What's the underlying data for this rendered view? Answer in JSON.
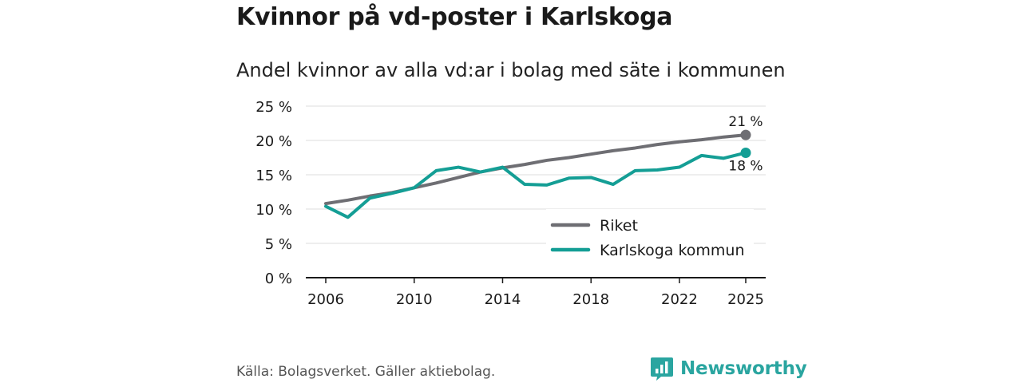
{
  "header": {
    "title": "Kvinnor på vd-poster i Karlskoga",
    "subtitle": "Andel kvinnor av alla vd:ar i bolag med säte i kommunen"
  },
  "footer": {
    "source": "Källa: Bolagsverket. Gäller aktiebolag.",
    "brand": "Newsworthy"
  },
  "colors": {
    "riket": "#6e6e73",
    "karlskoga": "#149e95",
    "grid": "#dddddd",
    "axis": "#1a1a1a",
    "brand": "#2aa5a0"
  },
  "chart_data": {
    "type": "line",
    "title": "Andel kvinnor av alla vd:ar i bolag med säte i kommunen",
    "xlabel": "",
    "ylabel": "",
    "x": [
      2006,
      2007,
      2008,
      2009,
      2010,
      2011,
      2012,
      2013,
      2014,
      2015,
      2016,
      2017,
      2018,
      2019,
      2020,
      2021,
      2022,
      2023,
      2024,
      2025
    ],
    "xlim": [
      2006,
      2025
    ],
    "ylim": [
      0,
      25
    ],
    "x_ticks": [
      2006,
      2010,
      2014,
      2018,
      2022,
      2025
    ],
    "x_tick_labels": [
      "2006",
      "2010",
      "2014",
      "2018",
      "2022",
      "2025"
    ],
    "y_ticks": [
      0,
      5,
      10,
      15,
      20,
      25
    ],
    "y_tick_labels": [
      "0 %",
      "5 %",
      "10 %",
      "15 %",
      "20 %",
      "25 %"
    ],
    "grid": true,
    "legend_position": "bottom-right",
    "series": [
      {
        "name": "Riket",
        "color": "#6e6e73",
        "values": [
          10.8,
          11.3,
          11.9,
          12.4,
          13.1,
          13.8,
          14.6,
          15.4,
          16.0,
          16.5,
          17.1,
          17.5,
          18.0,
          18.5,
          18.9,
          19.4,
          19.8,
          20.1,
          20.5,
          20.8
        ],
        "end_label": "21 %"
      },
      {
        "name": "Karlskoga kommun",
        "color": "#149e95",
        "values": [
          10.4,
          8.8,
          11.6,
          12.3,
          13.1,
          15.6,
          16.1,
          15.4,
          16.1,
          13.6,
          13.5,
          14.5,
          14.6,
          13.6,
          15.6,
          15.7,
          16.1,
          17.8,
          17.4,
          18.2
        ],
        "end_label": "18 %"
      }
    ]
  }
}
